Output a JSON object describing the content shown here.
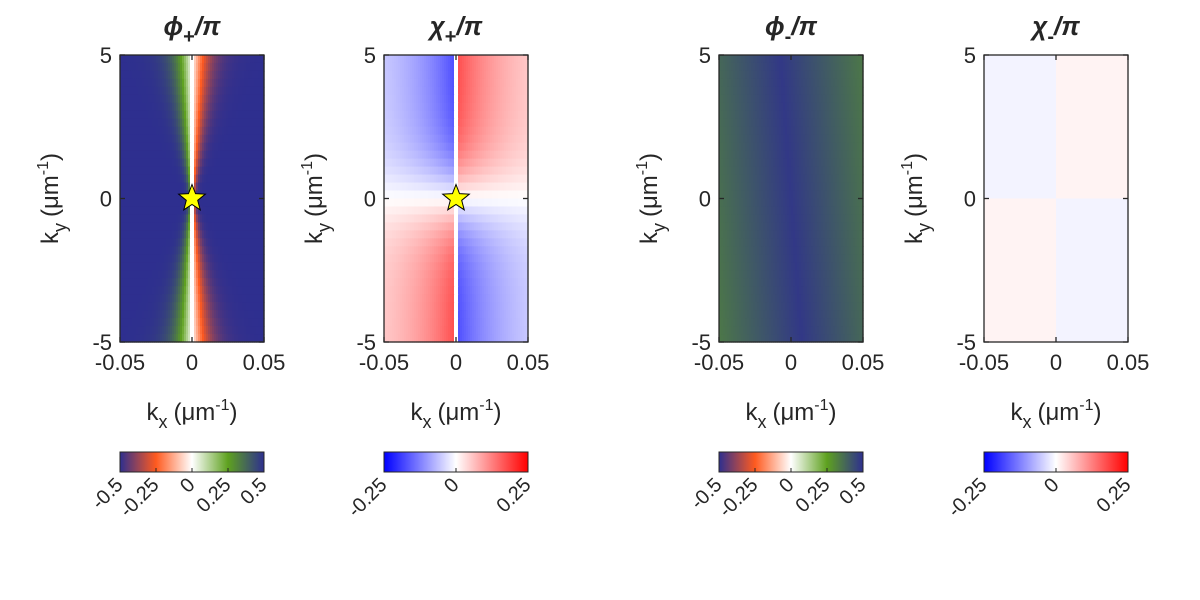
{
  "chart_data": [
    {
      "type": "heatmap",
      "title": "ϕ+/π",
      "title_main": "ϕ",
      "title_sub": "+",
      "title_tail": "/π",
      "xlabel": "k",
      "xlabel_sub": "x",
      "xlabel_unit": "(μm",
      "xlabel_sup": "-1",
      "xlabel_close": ")",
      "ylabel": "k",
      "ylabel_sub": "y",
      "ylabel_unit": "(μm",
      "ylabel_sup": "-1",
      "ylabel_close": ")",
      "xlim": [
        -0.05,
        0.05
      ],
      "ylim": [
        -5,
        5
      ],
      "xticks": [
        "-0.05",
        "0",
        "0.05"
      ],
      "yticks": [
        "-5",
        "0",
        "5"
      ],
      "clim": [
        -0.5,
        0.5
      ],
      "colormap": "cyclic",
      "colormap_stops": [
        "#2e2f8f",
        "#ff5a1f",
        "#ffffff",
        "#5ea11f",
        "#2e2f8f"
      ],
      "colorbar_ticks": [
        "-0.5",
        "-0.25",
        "0",
        "0.25",
        "0.5"
      ],
      "field": "phi_plus",
      "marker": {
        "shape": "star",
        "x": 0,
        "y": 0,
        "color": "#ffff00"
      }
    },
    {
      "type": "heatmap",
      "title": "χ+/π",
      "title_main": "χ",
      "title_sub": "+",
      "title_tail": "/π",
      "xlabel": "k",
      "xlabel_sub": "x",
      "xlabel_unit": "(μm",
      "xlabel_sup": "-1",
      "xlabel_close": ")",
      "ylabel": "k",
      "ylabel_sub": "y",
      "ylabel_unit": "(μm",
      "ylabel_sup": "-1",
      "ylabel_close": ")",
      "xlim": [
        -0.05,
        0.05
      ],
      "ylim": [
        -5,
        5
      ],
      "xticks": [
        "-0.05",
        "0",
        "0.05"
      ],
      "yticks": [
        "-5",
        "0",
        "5"
      ],
      "clim": [
        -0.25,
        0.25
      ],
      "colormap": "diverging",
      "colormap_stops": [
        "#0000ff",
        "#ffffff",
        "#ff0000"
      ],
      "colorbar_ticks": [
        "-0.25",
        "0",
        "0.25"
      ],
      "field": "chi_plus",
      "marker": {
        "shape": "star",
        "x": 0,
        "y": 0,
        "color": "#ffff00"
      }
    },
    {
      "type": "heatmap",
      "title": "ϕ-/π",
      "title_main": "ϕ",
      "title_sub": "-",
      "title_tail": "/π",
      "xlabel": "k",
      "xlabel_sub": "x",
      "xlabel_unit": "(μm",
      "xlabel_sup": "-1",
      "xlabel_close": ")",
      "ylabel": "k",
      "ylabel_sub": "y",
      "ylabel_unit": "(μm",
      "ylabel_sup": "-1",
      "ylabel_close": ")",
      "xlim": [
        -0.05,
        0.05
      ],
      "ylim": [
        -5,
        5
      ],
      "xticks": [
        "-0.05",
        "0",
        "0.05"
      ],
      "yticks": [
        "-5",
        "0",
        "5"
      ],
      "clim": [
        -0.5,
        0.5
      ],
      "colormap": "cyclic",
      "colormap_stops": [
        "#2e2f8f",
        "#ff5a1f",
        "#ffffff",
        "#5ea11f",
        "#2e2f8f"
      ],
      "colorbar_ticks": [
        "-0.5",
        "-0.25",
        "0",
        "0.25",
        "0.5"
      ],
      "field": "phi_minus"
    },
    {
      "type": "heatmap",
      "title": "χ-/π",
      "title_main": "χ",
      "title_sub": "-",
      "title_tail": "/π",
      "xlabel": "k",
      "xlabel_sub": "x",
      "xlabel_unit": "(μm",
      "xlabel_sup": "-1",
      "xlabel_close": ")",
      "ylabel": "k",
      "ylabel_sub": "y",
      "ylabel_unit": "(μm",
      "ylabel_sup": "-1",
      "ylabel_close": ")",
      "xlim": [
        -0.05,
        0.05
      ],
      "ylim": [
        -5,
        5
      ],
      "xticks": [
        "-0.05",
        "0",
        "0.05"
      ],
      "yticks": [
        "-5",
        "0",
        "5"
      ],
      "clim": [
        -0.25,
        0.25
      ],
      "colormap": "diverging",
      "colormap_stops": [
        "#0000ff",
        "#ffffff",
        "#ff0000"
      ],
      "colorbar_ticks": [
        "-0.25",
        "0",
        "0.25"
      ],
      "field": "chi_minus"
    }
  ]
}
